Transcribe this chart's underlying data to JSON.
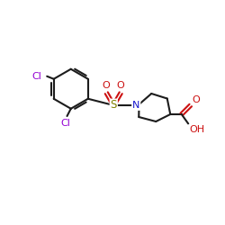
{
  "bg": "#ffffff",
  "bc": "#1c1c1c",
  "clc": "#9400d3",
  "nc": "#1515cc",
  "oc": "#cc1010",
  "sc": "#808000",
  "lw": 1.5,
  "fs": 8.0,
  "xlim": [
    0,
    10
  ],
  "ylim": [
    0,
    10
  ]
}
